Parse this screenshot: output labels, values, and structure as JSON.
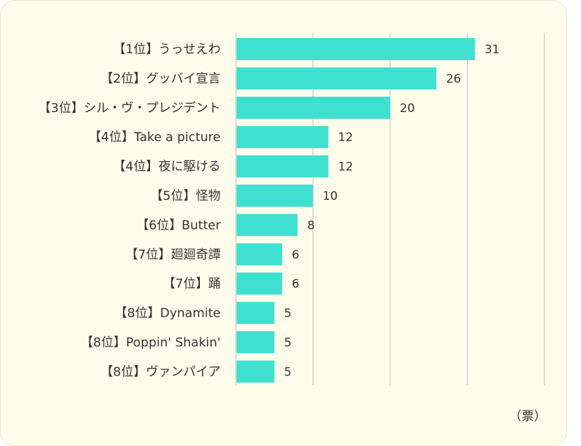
{
  "chart_data": {
    "type": "bar",
    "orientation": "horizontal",
    "categories": [
      "【1位】うっせえわ",
      "【2位】グッバイ宣言",
      "【3位】シル・ヴ・プレジデント",
      "【4位】Take a picture",
      "【4位】夜に駆ける",
      "【5位】怪物",
      "【6位】Butter",
      "【7位】廻廻奇譚",
      "【7位】踊",
      "【8位】Dynamite",
      "【8位】Poppin' Shakin'",
      "【8位】ヴァンパイア"
    ],
    "values": [
      31,
      26,
      20,
      12,
      12,
      10,
      8,
      6,
      6,
      5,
      5,
      5
    ],
    "xlim": [
      0,
      40
    ],
    "x_gridlines": [
      0,
      10,
      20,
      30,
      40
    ],
    "grid": true,
    "unit_label": "（票）",
    "bar_color": "#40e0d0",
    "grid_color": "#c8c8c8",
    "background_color": "#fefdec"
  }
}
